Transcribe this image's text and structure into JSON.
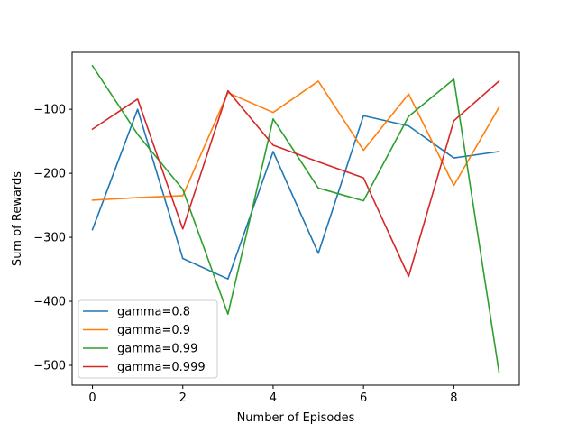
{
  "chart_data": {
    "type": "line",
    "xlabel": "Number of Episodes",
    "ylabel": "Sum of Rewards",
    "x": [
      0,
      1,
      2,
      3,
      4,
      5,
      6,
      7,
      8,
      9
    ],
    "xlim": [
      -0.45,
      9.45
    ],
    "ylim": [
      -531,
      -11
    ],
    "xticks": [
      0,
      2,
      4,
      6,
      8
    ],
    "yticks": [
      -500,
      -400,
      -300,
      -200,
      -100
    ],
    "xtick_labels": [
      "0",
      "2",
      "4",
      "6",
      "8"
    ],
    "ytick_labels": [
      "−500",
      "−400",
      "−300",
      "−200",
      "−100"
    ],
    "grid": false,
    "legend_position": "lower-left",
    "series": [
      {
        "name": "gamma=0.8",
        "color": "#1f77b4",
        "values": [
          -288,
          -100,
          -333,
          -365,
          -166,
          -325,
          -110,
          -126,
          -176,
          -166
        ]
      },
      {
        "name": "gamma=0.9",
        "color": "#ff7f0e",
        "values": [
          -242,
          -238,
          -235,
          -74,
          -105,
          -56,
          -164,
          -76,
          -219,
          -97
        ]
      },
      {
        "name": "gamma=0.99",
        "color": "#2ca02c",
        "values": [
          -32,
          -139,
          -225,
          -420,
          -115,
          -223,
          -243,
          -111,
          -53,
          -510
        ]
      },
      {
        "name": "gamma=0.999",
        "color": "#d62728",
        "values": [
          -131,
          -84,
          -287,
          -71,
          -156,
          -182,
          -207,
          -361,
          -118,
          -56
        ]
      }
    ]
  }
}
